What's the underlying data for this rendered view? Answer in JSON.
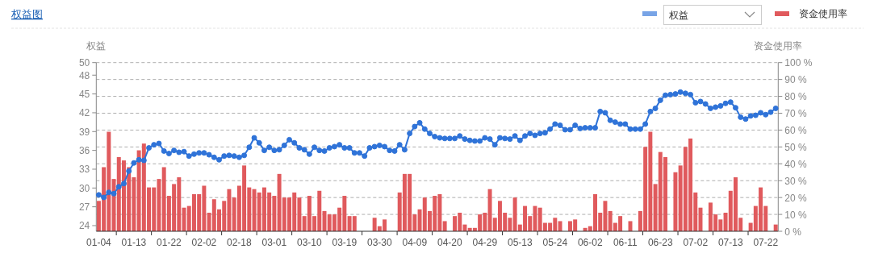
{
  "chart_data": {
    "type": "bar",
    "title": "权益图",
    "ylabel": "权益",
    "y2label": "资金使用率",
    "categories": [
      "01-04",
      null,
      null,
      null,
      null,
      null,
      null,
      "01-13",
      null,
      null,
      null,
      null,
      null,
      null,
      "01-22",
      null,
      null,
      null,
      null,
      null,
      null,
      "02-02",
      null,
      null,
      null,
      null,
      null,
      null,
      "02-18",
      null,
      null,
      null,
      null,
      null,
      null,
      "03-01",
      null,
      null,
      null,
      null,
      null,
      null,
      "03-10",
      null,
      null,
      null,
      null,
      null,
      null,
      "03-19",
      null,
      null,
      null,
      null,
      null,
      null,
      "03-30",
      null,
      null,
      null,
      null,
      null,
      null,
      "04-09",
      null,
      null,
      null,
      null,
      null,
      null,
      "04-20",
      null,
      null,
      null,
      null,
      null,
      null,
      "04-29",
      null,
      null,
      null,
      null,
      null,
      null,
      "05-13",
      null,
      null,
      null,
      null,
      null,
      null,
      "05-24",
      null,
      null,
      null,
      null,
      null,
      null,
      "06-02",
      null,
      null,
      null,
      null,
      null,
      null,
      "06-11",
      null,
      null,
      null,
      null,
      null,
      null,
      "06-23",
      null,
      null,
      null,
      null,
      null,
      null,
      "07-02",
      null,
      null,
      null,
      null,
      null,
      null,
      "07-13",
      null,
      null,
      null,
      null,
      null,
      null,
      "07-22",
      null,
      null
    ],
    "series": [
      {
        "name": "权益",
        "type": "line",
        "color": "#2f73d8",
        "values": [
          28.9,
          28.5,
          29.3,
          29.1,
          30.2,
          30.7,
          32.7,
          34.0,
          34.5,
          34.4,
          36.4,
          36.9,
          37.1,
          35.9,
          35.5,
          36.0,
          35.7,
          35.8,
          35.1,
          35.4,
          35.6,
          35.6,
          35.3,
          34.9,
          34.5,
          35.1,
          35.2,
          35.1,
          34.9,
          35.2,
          36.5,
          38.0,
          37.2,
          36.0,
          36.5,
          36.0,
          36.1,
          36.8,
          37.7,
          37.2,
          36.4,
          36.1,
          35.4,
          36.5,
          36.0,
          35.9,
          36.4,
          36.6,
          36.9,
          36.4,
          36.4,
          35.6,
          35.6,
          35.1,
          36.4,
          36.6,
          36.8,
          36.6,
          36.0,
          35.9,
          36.9,
          36.1,
          38.7,
          39.8,
          40.4,
          39.4,
          38.7,
          38.2,
          38.0,
          37.9,
          37.9,
          37.9,
          38.3,
          37.8,
          37.6,
          37.5,
          37.5,
          38.0,
          37.8,
          36.9,
          38.0,
          37.9,
          37.8,
          38.3,
          37.6,
          38.3,
          38.7,
          38.4,
          38.7,
          38.8,
          39.4,
          40.2,
          40.0,
          39.3,
          39.3,
          40.0,
          39.5,
          39.6,
          39.6,
          39.6,
          42.2,
          42.0,
          40.8,
          40.5,
          40.2,
          40.2,
          39.4,
          39.4,
          39.4,
          40.2,
          42.2,
          42.7,
          44.0,
          44.8,
          44.9,
          45.0,
          45.3,
          45.1,
          44.9,
          43.6,
          43.8,
          43.4,
          42.7,
          42.9,
          43.1,
          43.5,
          43.7,
          42.8,
          41.3,
          41.0,
          41.5,
          41.6,
          42.0,
          41.7,
          42.1,
          42.7
        ]
      },
      {
        "name": "资金使用率",
        "axis": "y2",
        "color": "#e05a5d",
        "values": [
          18,
          38,
          59,
          31,
          44,
          42,
          38,
          32,
          48,
          52,
          26,
          26,
          31,
          38,
          21,
          28,
          32,
          14,
          15,
          22,
          22,
          27,
          11,
          19,
          13,
          18,
          25,
          20,
          27,
          39,
          26,
          25,
          23,
          26,
          23,
          21,
          34,
          20,
          20,
          23,
          20,
          9,
          21,
          9,
          24,
          12,
          10,
          10,
          14,
          21,
          9,
          9,
          null,
          null,
          null,
          8,
          3,
          7,
          null,
          null,
          23,
          34,
          34,
          10,
          13,
          20,
          12,
          21,
          22,
          6,
          null,
          9,
          11,
          4,
          2,
          2,
          10,
          11,
          25,
          8,
          18,
          11,
          8,
          20,
          4,
          15,
          9,
          15,
          14,
          5,
          5,
          8,
          6,
          null,
          6,
          7,
          null,
          2,
          3,
          22,
          11,
          18,
          12,
          5,
          9,
          null,
          6,
          null,
          12,
          50,
          59,
          28,
          47,
          44,
          null,
          35,
          39,
          50,
          55,
          23,
          14,
          null,
          17,
          10,
          7,
          11,
          24,
          32,
          8,
          null,
          5,
          15,
          26,
          15,
          null,
          4
        ]
      }
    ],
    "ylim": [
      23.1,
      50
    ],
    "yticks": [
      24,
      27,
      30,
      33,
      36,
      39,
      42,
      45,
      48,
      50
    ],
    "y2lim": [
      0,
      100
    ],
    "y2ticks": [
      {
        "value": 0,
        "label": "0 %"
      },
      {
        "value": 10,
        "label": "10 %"
      },
      {
        "value": 20,
        "label": "20 %"
      },
      {
        "value": 30,
        "label": "30 %"
      },
      {
        "value": 40,
        "label": "40 %"
      },
      {
        "value": 50,
        "label": "50 %"
      },
      {
        "value": 60,
        "label": "60 %"
      },
      {
        "value": 70,
        "label": "70 %"
      },
      {
        "value": 80,
        "label": "80 %"
      },
      {
        "value": 90,
        "label": "90 %"
      },
      {
        "value": 100,
        "label": "100 %"
      }
    ],
    "grid": true,
    "legend": "top right",
    "marker": "circle"
  }
}
